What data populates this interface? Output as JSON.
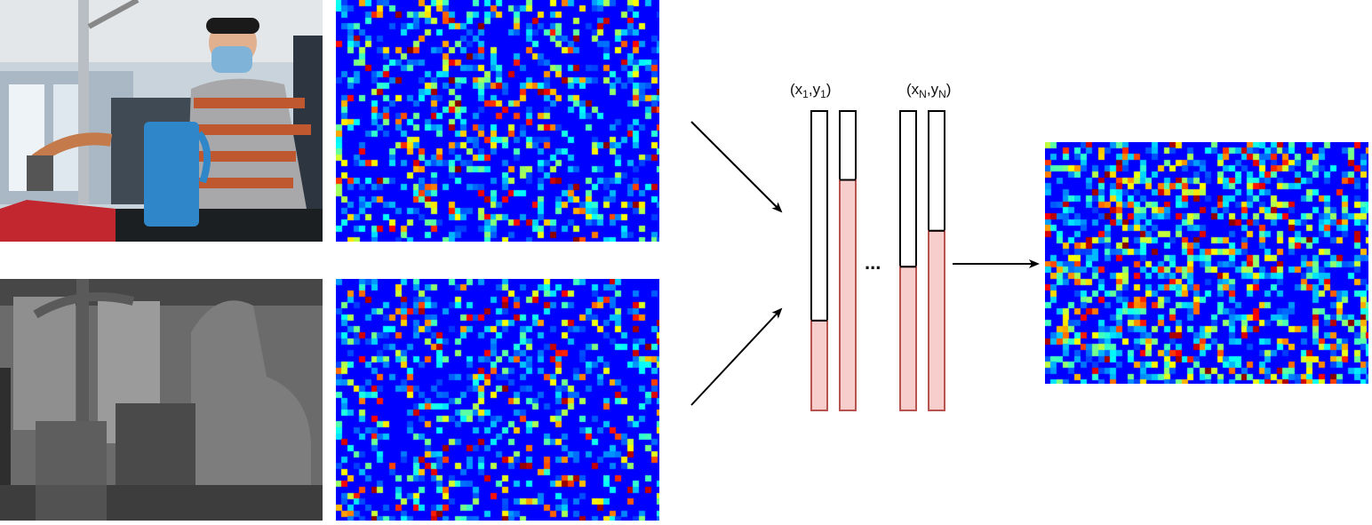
{
  "labels": {
    "first_pair": {
      "open": "(x",
      "sub_x": "1",
      "comma": ",y",
      "sub_y": "1",
      "close": ")"
    },
    "last_pair": {
      "open": "(x",
      "sub_x": "N",
      "comma": ",y",
      "sub_y": "N",
      "close": ")"
    },
    "ellipsis": "..."
  },
  "bars": [
    {
      "name": "bar-x1",
      "fill_fraction": 0.3
    },
    {
      "name": "bar-y1",
      "fill_fraction": 0.77
    },
    {
      "name": "bar-xN",
      "fill_fraction": 0.48
    },
    {
      "name": "bar-yN",
      "fill_fraction": 0.6
    }
  ],
  "colors": {
    "bar_fill": "#f8cecc",
    "bar_stroke": "#b85450",
    "heatmap_background": "#0000ff",
    "arrow": "#000000"
  },
  "images": {
    "rgb_photo": "rgb-camera-frame",
    "depth_photo": "depth-camera-frame",
    "heatmaps": [
      "rgb-feature-heatmap",
      "depth-feature-heatmap",
      "fused-feature-heatmap"
    ]
  }
}
